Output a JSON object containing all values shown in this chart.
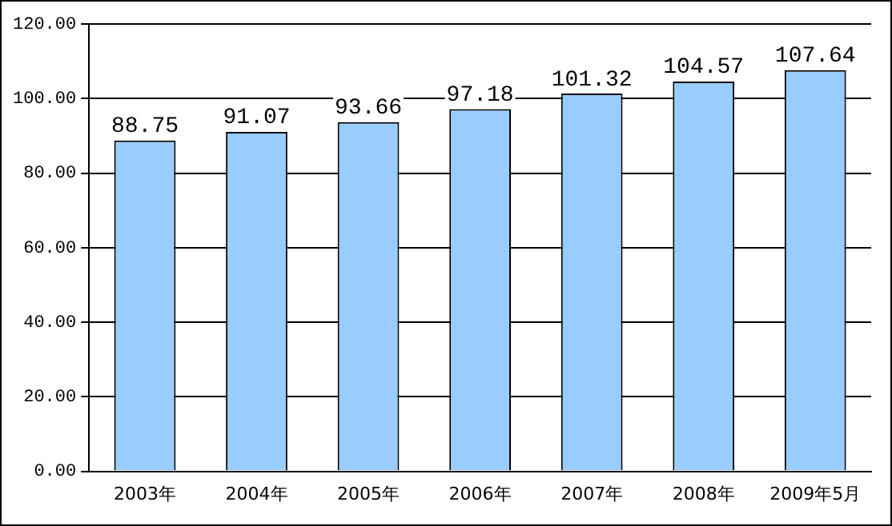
{
  "chart_data": {
    "type": "bar",
    "categories": [
      "2003年",
      "2004年",
      "2005年",
      "2006年",
      "2007年",
      "2008年",
      "2009年5月"
    ],
    "values": [
      88.75,
      91.07,
      93.66,
      97.18,
      101.32,
      104.57,
      107.64
    ],
    "color": "#99ccff",
    "ylim": [
      0,
      120
    ],
    "yticks": [
      {
        "value": 0,
        "label": "0.00"
      },
      {
        "value": 20,
        "label": "20.00"
      },
      {
        "value": 40,
        "label": "40.00"
      },
      {
        "value": 60,
        "label": "60.00"
      },
      {
        "value": 80,
        "label": "80.00"
      },
      {
        "value": 100,
        "label": "100.00"
      },
      {
        "value": 120,
        "label": "120.00"
      }
    ],
    "grid": "y",
    "data_labels": true
  }
}
